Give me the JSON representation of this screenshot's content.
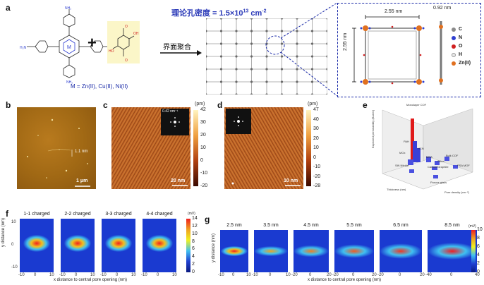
{
  "panels": {
    "a": {
      "label": "a",
      "density_text": "理论孔密度 = 1.5×10",
      "density_exp": "13",
      "density_unit": " cm",
      "density_unit_exp": "-2",
      "arrow_label": "界面聚合",
      "metals_text": "M = Zn(II), Cu(II), Ni(II)",
      "dim_horizontal": "2.55 nm",
      "dim_vertical": "2.55 nm",
      "dim_thickness": "0.92 nm",
      "legend": [
        {
          "label": "C",
          "color": "#8a8a8a"
        },
        {
          "label": "N",
          "color": "#2f3fd0"
        },
        {
          "label": "O",
          "color": "#d02020"
        },
        {
          "label": "H",
          "color": "#e8e8e8"
        },
        {
          "label": "Zn(II)",
          "color": "#e07020"
        }
      ]
    },
    "b": {
      "label": "b",
      "height_text": "1.1 nm",
      "scale_text": "1 μm"
    },
    "c": {
      "label": "c",
      "fft_text": "0.42 nm⁻¹",
      "scale_text": "20 nm",
      "unit": "(pm)",
      "ticks": [
        "42",
        "30",
        "20",
        "10",
        "0",
        "-10",
        "-20"
      ]
    },
    "d": {
      "label": "d",
      "scale_text": "10 nm",
      "unit": "(pm)",
      "ticks": [
        "47",
        "40",
        "30",
        "20",
        "10",
        "0",
        "-10",
        "-20",
        "-28"
      ]
    },
    "e": {
      "label": "e",
      "bars": [
        "Monolayer COF",
        "PAH",
        "HCN",
        "MOx",
        "MNA",
        "Silica",
        "Bulk COF",
        "Carbon/Graphite",
        "SiN Nitride",
        "PSA MOF",
        "Porous glass"
      ],
      "axis_y": "Expected permeability (Barrer)",
      "axis_x1": "Thickness (nm)",
      "axis_x2": "Pore density (cm⁻²)"
    },
    "f": {
      "label": "f",
      "titles": [
        "1-1 charged",
        "2-2 charged",
        "3-3 charged",
        "4-4 charged"
      ],
      "ylabel": "y distance (nm)",
      "xlabel": "x distance to central pore opening (nm)",
      "xticks": [
        "-10",
        "0",
        "10"
      ],
      "yticks": [
        "10",
        "0",
        "-10"
      ],
      "cbar_unit": "(mV)",
      "cbar_ticks": [
        "14",
        "12",
        "10",
        "8",
        "6",
        "4",
        "2",
        "0"
      ]
    },
    "g": {
      "label": "g",
      "titles": [
        "2.5 nm",
        "3.5 nm",
        "4.5 nm",
        "5.5 nm",
        "6.5 nm",
        "8.5 nm"
      ],
      "ylabel": "y distance (nm)",
      "xlabel": "x distance to central pore opening (nm)",
      "cbar_unit": "(mV)",
      "cbar_ticks": [
        "10",
        "8",
        "6",
        "4",
        "2",
        "0"
      ],
      "xticks": [
        [
          "-10",
          "0",
          "10"
        ],
        [
          "-10",
          "0",
          "10"
        ],
        [
          "-20",
          "0",
          "20"
        ],
        [
          "-20",
          "0",
          "20"
        ],
        [
          "-20",
          "0",
          "20"
        ],
        [
          "-40",
          "0",
          "40"
        ]
      ]
    }
  }
}
